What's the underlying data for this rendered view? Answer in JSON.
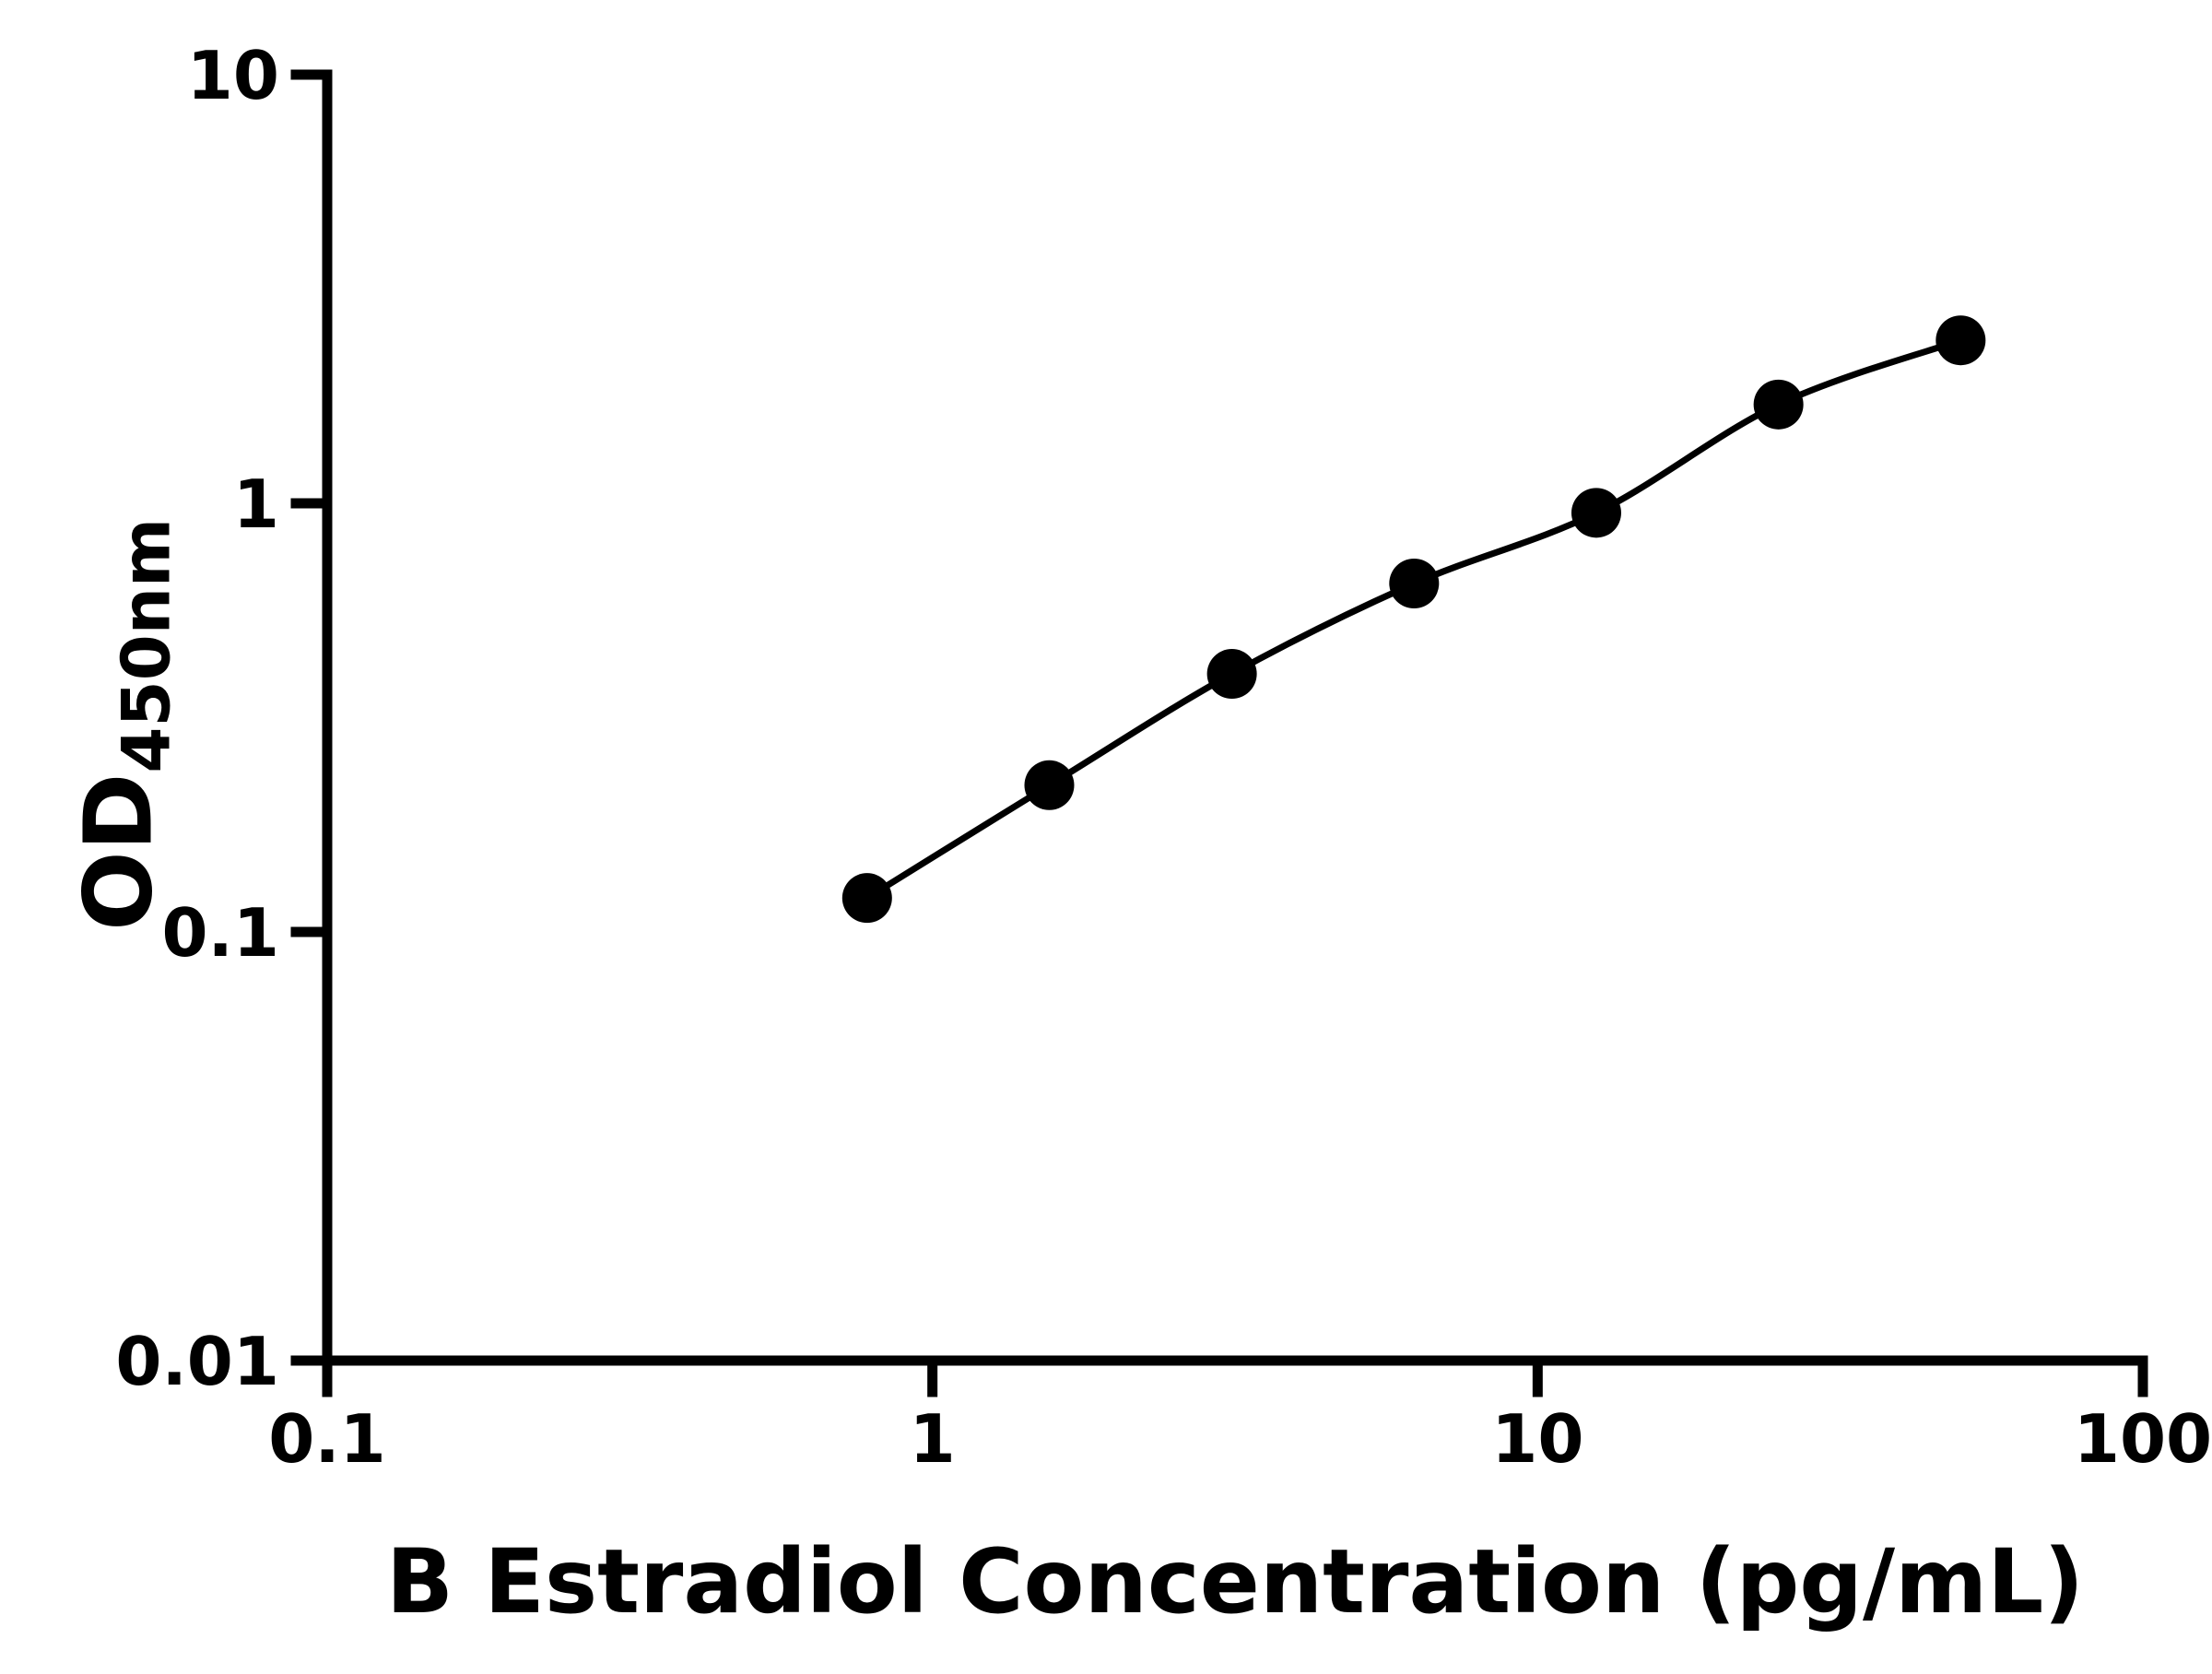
{
  "chart_data": {
    "type": "line",
    "xlabel": "B Estradiol Concentration (pg/mL)",
    "ylabel": "OD450nm",
    "ylabel_main": "OD",
    "ylabel_sub": "450nm",
    "x": [
      0.78,
      1.56,
      3.125,
      6.25,
      12.5,
      25,
      50
    ],
    "y": [
      0.12,
      0.22,
      0.4,
      0.65,
      0.95,
      1.7,
      2.4
    ],
    "xlim": [
      0.1,
      100
    ],
    "ylim": [
      0.01,
      10
    ],
    "xscale": "log",
    "yscale": "log",
    "x_tick_labels": [
      "0.1",
      "1",
      "10",
      "100"
    ],
    "y_tick_labels": [
      "0.01",
      "0.1",
      "1",
      "10"
    ],
    "grid": false,
    "legend": false,
    "marker": "circle",
    "marker_color": "#000000",
    "line_color": "#000000",
    "axis_color": "#000000",
    "background_color": "#ffffff"
  }
}
